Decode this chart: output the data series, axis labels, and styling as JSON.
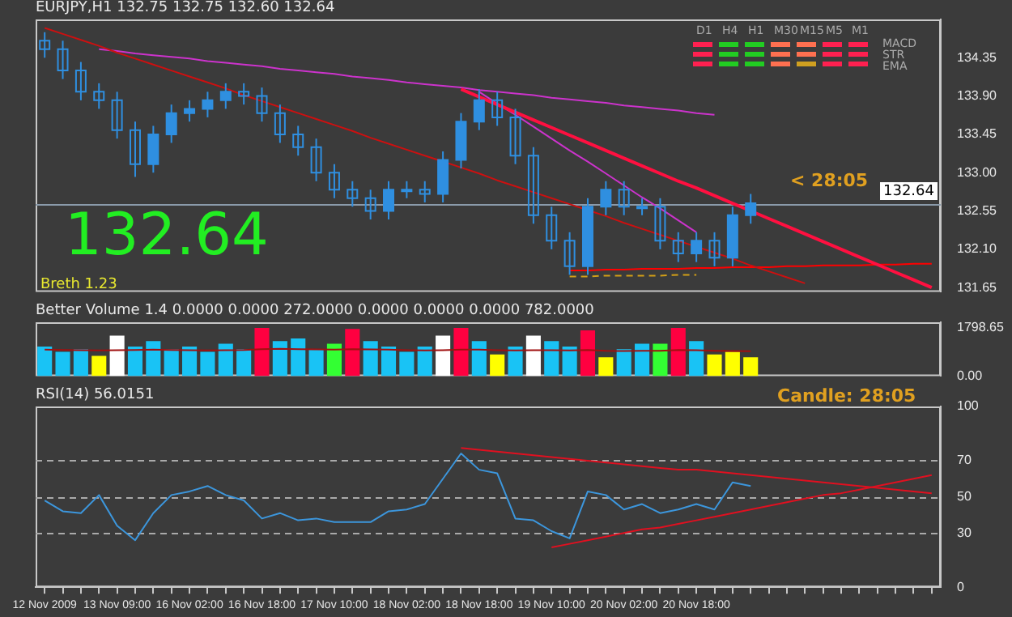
{
  "chart_data": [
    {
      "type": "candlestick",
      "title": "EURJPY,H1 132.75 132.75 132.60 132.64",
      "color": "#2f8fe0",
      "categories": [
        null,
        null,
        null,
        null,
        null,
        null,
        null,
        null,
        null,
        null,
        null,
        null,
        null,
        null,
        null,
        null,
        null,
        null,
        null,
        null,
        null,
        null,
        null,
        null,
        null,
        null,
        null,
        null,
        null,
        null,
        null,
        null,
        null,
        null,
        null,
        null,
        null,
        null,
        null,
        null,
        null,
        null,
        null,
        null,
        null,
        null,
        null,
        null,
        null,
        null
      ],
      "ohlc": [
        [
          134.55,
          134.65,
          134.35,
          134.45
        ],
        [
          134.45,
          134.55,
          134.1,
          134.2
        ],
        [
          134.2,
          134.3,
          133.85,
          133.95
        ],
        [
          133.95,
          134.05,
          133.75,
          133.85
        ],
        [
          133.85,
          133.95,
          133.4,
          133.5
        ],
        [
          133.5,
          133.6,
          132.95,
          133.1
        ],
        [
          133.1,
          133.55,
          133.0,
          133.45
        ],
        [
          133.45,
          133.8,
          133.35,
          133.7
        ],
        [
          133.7,
          133.85,
          133.6,
          133.75
        ],
        [
          133.75,
          133.95,
          133.65,
          133.85
        ],
        [
          133.85,
          134.05,
          133.75,
          133.95
        ],
        [
          133.95,
          134.05,
          133.8,
          133.9
        ],
        [
          133.9,
          134.0,
          133.6,
          133.7
        ],
        [
          133.7,
          133.8,
          133.35,
          133.45
        ],
        [
          133.45,
          133.55,
          133.2,
          133.3
        ],
        [
          133.3,
          133.4,
          132.9,
          133.0
        ],
        [
          133.0,
          133.1,
          132.7,
          132.8
        ],
        [
          132.8,
          132.9,
          132.6,
          132.7
        ],
        [
          132.7,
          132.8,
          132.45,
          132.55
        ],
        [
          132.55,
          132.9,
          132.45,
          132.8
        ],
        [
          132.8,
          132.9,
          132.7,
          132.8
        ],
        [
          132.8,
          132.9,
          132.65,
          132.75
        ],
        [
          132.75,
          133.25,
          132.65,
          133.15
        ],
        [
          133.15,
          133.7,
          133.05,
          133.6
        ],
        [
          133.6,
          133.98,
          133.5,
          133.85
        ],
        [
          133.85,
          133.95,
          133.55,
          133.65
        ],
        [
          133.65,
          133.75,
          133.1,
          133.2
        ],
        [
          133.2,
          133.3,
          132.4,
          132.5
        ],
        [
          132.5,
          132.6,
          132.1,
          132.2
        ],
        [
          132.2,
          132.3,
          131.8,
          131.9
        ],
        [
          131.9,
          132.7,
          131.8,
          132.6
        ],
        [
          132.6,
          132.9,
          132.5,
          132.8
        ],
        [
          132.8,
          132.9,
          132.5,
          132.6
        ],
        [
          132.6,
          132.7,
          132.5,
          132.6
        ],
        [
          132.6,
          132.7,
          132.1,
          132.2
        ],
        [
          132.2,
          132.3,
          131.95,
          132.05
        ],
        [
          132.05,
          132.3,
          131.95,
          132.2
        ],
        [
          132.2,
          132.3,
          131.9,
          132.0
        ],
        [
          132.0,
          132.6,
          131.9,
          132.5
        ],
        [
          132.5,
          132.75,
          132.4,
          132.64
        ],
        null,
        null,
        null,
        null,
        null,
        null,
        null,
        null,
        null,
        null
      ],
      "series": [
        {
          "type": "line",
          "color": "#ff1040",
          "values": [
            null,
            null,
            null,
            null,
            null,
            null,
            null,
            null,
            null,
            null,
            null,
            null,
            null,
            null,
            null,
            null,
            null,
            null,
            null,
            null,
            null,
            null,
            null,
            133.98,
            133.89,
            133.8,
            133.71,
            133.62,
            133.53,
            133.44,
            133.35,
            133.26,
            133.17,
            133.08,
            132.99,
            132.9,
            132.82,
            132.73,
            132.64,
            132.55,
            132.46,
            132.37,
            132.28,
            132.19,
            132.1,
            132.01,
            131.92,
            131.83,
            131.74,
            131.65
          ]
        },
        {
          "type": "line",
          "color": "#cc1010",
          "values": [
            134.7,
            134.63,
            134.56,
            134.49,
            134.41,
            134.34,
            134.27,
            134.2,
            134.13,
            134.06,
            133.99,
            133.91,
            133.84,
            133.77,
            133.7,
            133.63,
            133.56,
            133.49,
            133.41,
            133.34,
            133.27,
            133.2,
            133.13,
            133.06,
            132.99,
            132.91,
            132.84,
            132.77,
            132.7,
            132.63,
            132.56,
            132.49,
            132.41,
            132.34,
            132.27,
            132.2,
            132.13,
            132.06,
            131.99,
            131.91,
            131.84,
            131.77,
            131.7,
            null,
            null,
            null,
            null,
            null,
            null,
            null
          ]
        },
        {
          "type": "line",
          "color": "#cc33cc",
          "values": [
            null,
            null,
            null,
            134.45,
            134.43,
            134.4,
            134.38,
            134.36,
            134.34,
            134.31,
            134.29,
            134.27,
            134.25,
            134.22,
            134.2,
            134.18,
            134.16,
            134.13,
            134.11,
            134.09,
            134.06,
            134.04,
            134.02,
            134.0,
            133.97,
            133.95,
            133.93,
            133.91,
            133.88,
            133.86,
            133.84,
            133.82,
            133.79,
            133.77,
            133.75,
            133.73,
            133.7,
            133.68,
            null,
            null,
            null,
            null,
            null,
            null,
            null,
            null,
            null,
            null,
            null,
            null
          ]
        },
        {
          "type": "line",
          "color": "#cc33cc",
          "values": [
            null,
            null,
            null,
            null,
            null,
            null,
            null,
            null,
            null,
            null,
            null,
            null,
            null,
            null,
            null,
            null,
            null,
            null,
            null,
            null,
            null,
            null,
            null,
            null,
            133.95,
            133.81,
            133.68,
            133.54,
            133.4,
            133.26,
            133.13,
            132.99,
            132.85,
            132.71,
            132.58,
            132.44,
            132.3,
            null,
            null,
            null,
            null,
            null,
            null,
            null,
            null,
            null,
            null,
            null,
            null,
            null
          ]
        },
        {
          "type": "line",
          "color": "#ff0000",
          "values": [
            null,
            null,
            null,
            null,
            null,
            null,
            null,
            null,
            null,
            null,
            null,
            null,
            null,
            null,
            null,
            null,
            null,
            null,
            null,
            null,
            null,
            null,
            null,
            null,
            null,
            null,
            null,
            null,
            null,
            131.85,
            131.85,
            131.86,
            131.86,
            131.87,
            131.87,
            131.87,
            131.88,
            131.88,
            131.89,
            131.89,
            131.89,
            131.9,
            131.9,
            131.91,
            131.91,
            131.91,
            131.92,
            131.92,
            131.93,
            131.93
          ]
        },
        {
          "type": "line",
          "color": "#d4a017",
          "line_style": "dashed",
          "values": [
            null,
            null,
            null,
            null,
            null,
            null,
            null,
            null,
            null,
            null,
            null,
            null,
            null,
            null,
            null,
            null,
            null,
            null,
            null,
            null,
            null,
            null,
            null,
            null,
            null,
            null,
            null,
            null,
            null,
            131.78,
            131.78,
            131.79,
            131.79,
            131.79,
            131.79,
            131.8,
            131.8,
            null,
            null,
            null,
            null,
            null,
            null,
            null,
            null,
            null,
            null,
            null,
            null,
            null
          ]
        }
      ],
      "ylim": [
        131.6,
        134.8
      ],
      "yticks": [
        {
          "value": 131.65,
          "label": "131.65"
        },
        {
          "value": 132.1,
          "label": "132.10"
        },
        {
          "value": 132.55,
          "label": "132.55"
        },
        {
          "value": 133.0,
          "label": "133.00"
        },
        {
          "value": 133.45,
          "label": "133.45"
        },
        {
          "value": 133.9,
          "label": "133.90"
        },
        {
          "value": 134.35,
          "label": "134.35"
        }
      ],
      "ref_lines": [
        {
          "axis": "y",
          "value": 132.64,
          "label": "132.64",
          "color": "#8a9aaa"
        }
      ],
      "annotations": [
        "132.64",
        "Breth 1.23",
        "<  28:05",
        "D1",
        "H4",
        "H1",
        "M30",
        "M15",
        "M5",
        "M1",
        "MACD",
        "STR",
        "EMA"
      ],
      "tick_labels": "y",
      "grid": false,
      "legend": false
    },
    {
      "type": "bar",
      "title": "Better Volume 1.4 0.0000 0.0000 272.0000 0.0000 0.0000 0.0000 782.0000",
      "categories": [
        null,
        null,
        null,
        null,
        null,
        null,
        null,
        null,
        null,
        null,
        null,
        null,
        null,
        null,
        null,
        null,
        null,
        null,
        null,
        null,
        null,
        null,
        null,
        null,
        null,
        null,
        null,
        null,
        null,
        null,
        null,
        null,
        null,
        null,
        null,
        null,
        null,
        null,
        null,
        null,
        null,
        null,
        null,
        null,
        null,
        null,
        null,
        null,
        null,
        null
      ],
      "values": [
        1100,
        900,
        1000,
        750,
        1500,
        1100,
        1300,
        1000,
        1100,
        900,
        1200,
        1000,
        1790,
        1300,
        1400,
        1000,
        1200,
        1750,
        1300,
        1100,
        900,
        1100,
        1500,
        1790,
        1300,
        800,
        1100,
        1500,
        1300,
        1100,
        1700,
        700,
        1000,
        1200,
        1200,
        1790,
        1300,
        800,
        900,
        700,
        null,
        null,
        null,
        null,
        null,
        null,
        null,
        null,
        null,
        null
      ],
      "colors": [
        "#19c3f5",
        "#19c3f5",
        "#19c3f5",
        "#ffff00",
        "#ffffff",
        "#19c3f5",
        "#19c3f5",
        "#19c3f5",
        "#19c3f5",
        "#19c3f5",
        "#19c3f5",
        "#19c3f5",
        "#ff0040",
        "#19c3f5",
        "#19c3f5",
        "#19c3f5",
        "#33ff33",
        "#ff0040",
        "#19c3f5",
        "#19c3f5",
        "#19c3f5",
        "#19c3f5",
        "#ffffff",
        "#ff0040",
        "#19c3f5",
        "#ffff00",
        "#19c3f5",
        "#ffffff",
        "#19c3f5",
        "#19c3f5",
        "#ff0040",
        "#ffff00",
        "#19c3f5",
        "#19c3f5",
        "#33ff33",
        "#ff0040",
        "#19c3f5",
        "#ffff00",
        "#ffff00",
        "#ffff00",
        "#19c3f5",
        "#19c3f5",
        "#19c3f5",
        "#19c3f5",
        "#19c3f5",
        "#19c3f5",
        "#19c3f5",
        "#19c3f5",
        "#19c3f5",
        "#19c3f5"
      ],
      "series": [
        {
          "type": "line",
          "color": "#a01010",
          "values": [
            980,
            970,
            960,
            950,
            960,
            970,
            980,
            970,
            960,
            950,
            960,
            970,
            1000,
            1010,
            1000,
            990,
            980,
            1000,
            990,
            980,
            960,
            950,
            960,
            980,
            980,
            960,
            950,
            960,
            960,
            950,
            970,
            940,
            930,
            940,
            940,
            970,
            960,
            940,
            930,
            920,
            null,
            null,
            null,
            null,
            null,
            null,
            null,
            null,
            null,
            null
          ]
        }
      ],
      "ylim": [
        0,
        2000
      ],
      "yticks": [
        {
          "value": 0,
          "label": "0.00"
        },
        1798.65
      ],
      "tick_labels": "y",
      "grid": false,
      "legend": false
    },
    {
      "type": "line",
      "title": "RSI(14) 56.0151",
      "categories": [
        "12 Nov 2009",
        null,
        null,
        null,
        "13 Nov 09:00",
        null,
        null,
        null,
        "16 Nov 02:00",
        null,
        null,
        null,
        "16 Nov 18:00",
        null,
        null,
        null,
        "17 Nov 10:00",
        null,
        null,
        null,
        "18 Nov 02:00",
        null,
        null,
        null,
        "18 Nov 18:00",
        null,
        null,
        null,
        "19 Nov 10:00",
        null,
        null,
        null,
        "20 Nov 02:00",
        null,
        null,
        null,
        "20 Nov 18:00",
        null,
        null,
        null,
        null,
        null,
        null,
        null,
        null,
        null,
        null,
        null,
        null,
        null
      ],
      "series": [
        {
          "color": "#3c96dc",
          "values": [
            48,
            42,
            41,
            51,
            34,
            26,
            41,
            51,
            53,
            56,
            51,
            48,
            38,
            41,
            37,
            38,
            36,
            36,
            36,
            42,
            43,
            46,
            60,
            74,
            65,
            63,
            38,
            37,
            31,
            27,
            53,
            51,
            43,
            46,
            41,
            43,
            46,
            43,
            58,
            56,
            null,
            null,
            null,
            null,
            null,
            null,
            null,
            null,
            null,
            null
          ]
        },
        {
          "color": "#e01020",
          "values": [
            null,
            null,
            null,
            null,
            null,
            null,
            null,
            null,
            null,
            null,
            null,
            null,
            null,
            null,
            null,
            null,
            null,
            null,
            null,
            null,
            null,
            null,
            null,
            77,
            76,
            75,
            74,
            73,
            72,
            71,
            70,
            69,
            68,
            67,
            66,
            65,
            65,
            64,
            63,
            62,
            61,
            60,
            59,
            58,
            57,
            56,
            55,
            54,
            53,
            52
          ]
        },
        {
          "color": "#e01020",
          "values": [
            null,
            null,
            null,
            null,
            null,
            null,
            null,
            null,
            null,
            null,
            null,
            null,
            null,
            null,
            null,
            null,
            null,
            null,
            null,
            null,
            null,
            null,
            null,
            null,
            null,
            null,
            null,
            null,
            22,
            24,
            26,
            28,
            30,
            32,
            33,
            35,
            37,
            39,
            41,
            43,
            45,
            47,
            49,
            51,
            52,
            54,
            56,
            58,
            60,
            62
          ]
        }
      ],
      "ylim": [
        0,
        100
      ],
      "yticks": [
        0,
        30,
        50,
        70,
        100
      ],
      "ref_lines": [
        {
          "axis": "y",
          "value": 30,
          "color": "#aaaaaa",
          "line_style": "dashed"
        },
        {
          "axis": "y",
          "value": 50,
          "color": "#aaaaaa",
          "line_style": "dashed"
        },
        {
          "axis": "y",
          "value": 70,
          "color": "#aaaaaa",
          "line_style": "dashed"
        }
      ],
      "annotations": [
        "Candle:  28:05"
      ],
      "grid": false,
      "legend": false
    }
  ]
}
